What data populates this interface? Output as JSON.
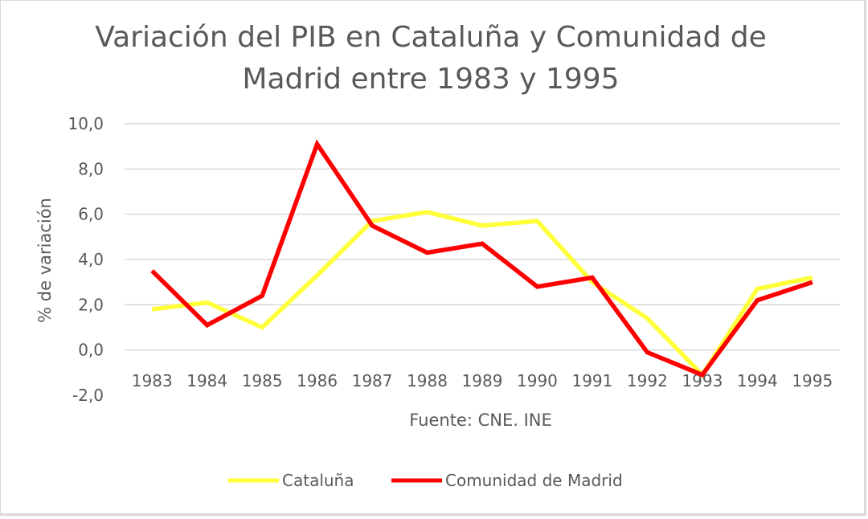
{
  "chart_data": {
    "type": "line",
    "title_line1": "Variación del PIB en Cataluña y Comunidad de",
    "title_line2": "Madrid entre 1983 y 1995",
    "xlabel": "Fuente: CNE. INE",
    "ylabel": "% de variación",
    "ylim": [
      -2,
      10
    ],
    "ytick_values": [
      -2,
      0,
      2,
      4,
      6,
      8,
      10
    ],
    "ytick_labels": [
      "-2,0",
      "0,0",
      "2,0",
      "4,0",
      "6,0",
      "8,0",
      "10,0"
    ],
    "categories": [
      "1983",
      "1984",
      "1985",
      "1986",
      "1987",
      "1988",
      "1989",
      "1990",
      "1991",
      "1992",
      "1993",
      "1994",
      "1995"
    ],
    "grid": true,
    "legend_position": "bottom",
    "series": [
      {
        "name": "Cataluña",
        "color": "#ffff3a",
        "values": [
          1.8,
          2.1,
          1.0,
          3.3,
          5.7,
          6.1,
          5.5,
          5.7,
          3.0,
          1.4,
          -1.1,
          2.7,
          3.2
        ]
      },
      {
        "name": "Comunidad de Madrid",
        "color": "#ff0000",
        "values": [
          3.5,
          1.1,
          2.4,
          9.1,
          5.5,
          4.3,
          4.7,
          2.8,
          3.2,
          -0.1,
          -1.1,
          2.2,
          3.0
        ]
      }
    ]
  }
}
